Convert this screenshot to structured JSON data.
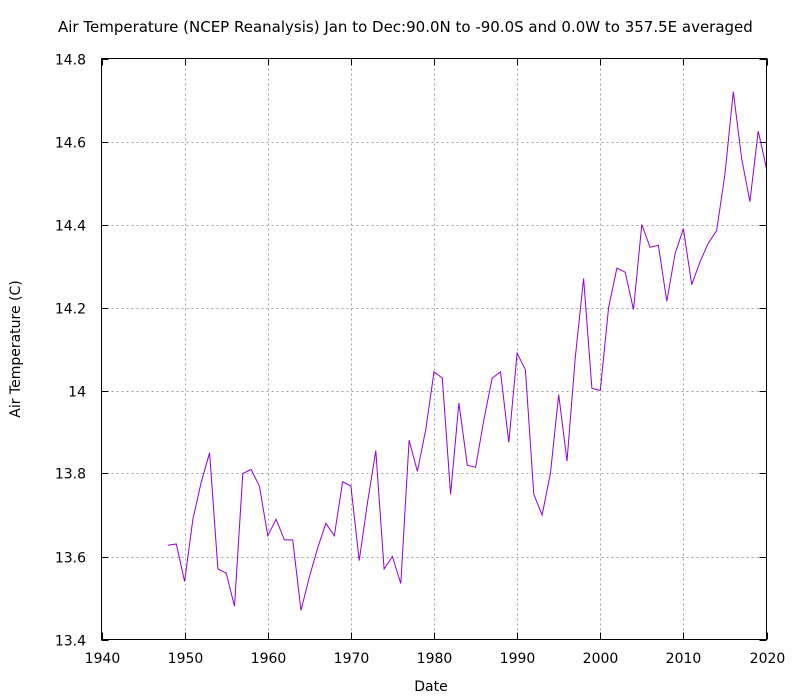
{
  "chart_data": {
    "type": "line",
    "title": "Air Temperature (NCEP Reanalysis) Jan to Dec:90.0N to -90.0S and 0.0W to 357.5E averaged",
    "xlabel": "Date",
    "ylabel": "Air Temperature (C)",
    "xlim": [
      1940,
      2020
    ],
    "ylim": [
      13.4,
      14.8
    ],
    "x_ticks": [
      1940,
      1950,
      1960,
      1970,
      1980,
      1990,
      2000,
      2010,
      2020
    ],
    "y_ticks": [
      13.4,
      13.6,
      13.8,
      14,
      14.2,
      14.4,
      14.6,
      14.8
    ],
    "x_tick_labels": [
      "1940",
      "1950",
      "1960",
      "1970",
      "1980",
      "1990",
      "2000",
      "2010",
      "2020"
    ],
    "y_tick_labels": [
      "13.4",
      "13.6",
      "13.8",
      "14",
      "14.2",
      "14.4",
      "14.6",
      "14.8"
    ],
    "grid": true,
    "legend": "none",
    "series": [
      {
        "name": "Air Temperature",
        "color": "#9400d3",
        "x": [
          1948,
          1949,
          1950,
          1951,
          1952,
          1953,
          1954,
          1955,
          1956,
          1957,
          1958,
          1959,
          1960,
          1961,
          1962,
          1963,
          1964,
          1965,
          1966,
          1967,
          1968,
          1969,
          1970,
          1971,
          1972,
          1973,
          1974,
          1975,
          1976,
          1977,
          1978,
          1979,
          1980,
          1981,
          1982,
          1983,
          1984,
          1985,
          1986,
          1987,
          1988,
          1989,
          1990,
          1991,
          1992,
          1993,
          1994,
          1995,
          1996,
          1997,
          1998,
          1999,
          2000,
          2001,
          2002,
          2003,
          2004,
          2005,
          2006,
          2007,
          2008,
          2009,
          2010,
          2011,
          2012,
          2013,
          2014,
          2015,
          2016,
          2017,
          2018,
          2019,
          2020
        ],
        "values": [
          13.627,
          13.63,
          13.54,
          13.69,
          13.78,
          13.85,
          13.57,
          13.56,
          13.48,
          13.8,
          13.81,
          13.77,
          13.65,
          13.69,
          13.64,
          13.64,
          13.47,
          13.55,
          13.62,
          13.68,
          13.65,
          13.78,
          13.77,
          13.59,
          13.73,
          13.855,
          13.57,
          13.6,
          13.535,
          13.88,
          13.805,
          13.905,
          14.045,
          14.03,
          13.75,
          13.97,
          13.82,
          13.815,
          13.93,
          14.03,
          14.045,
          13.875,
          14.09,
          14.05,
          13.75,
          13.7,
          13.8,
          13.99,
          13.83,
          14.08,
          14.27,
          14.005,
          14.0,
          14.2,
          14.295,
          14.285,
          14.195,
          14.4,
          14.345,
          14.35,
          14.215,
          14.33,
          14.39,
          14.255,
          14.31,
          14.355,
          14.385,
          14.52,
          14.72,
          14.56,
          14.455,
          14.625,
          14.535
        ]
      }
    ]
  }
}
